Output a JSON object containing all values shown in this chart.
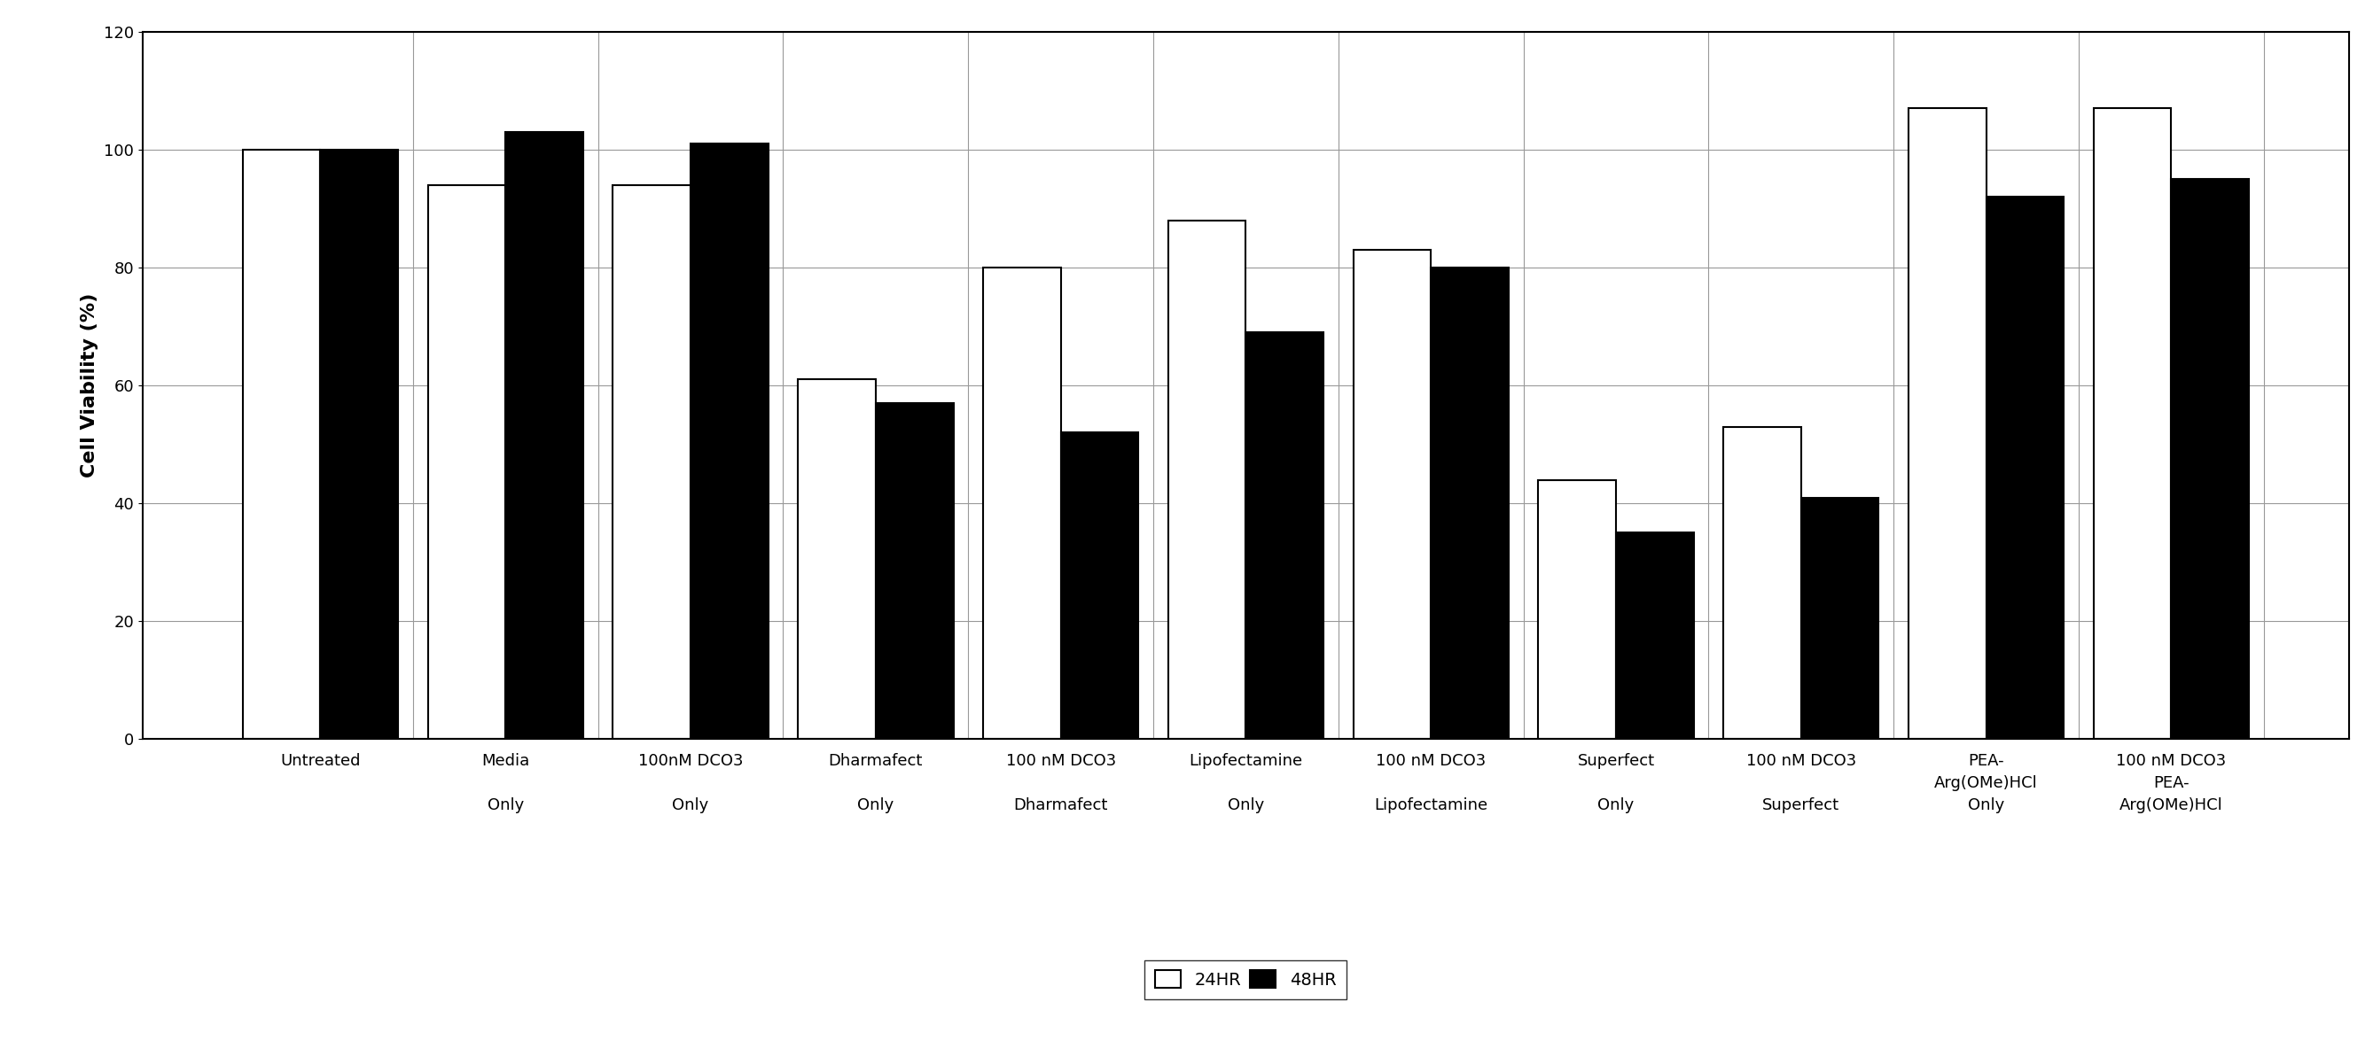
{
  "categories": [
    "Untreated",
    "Media\n\nOnly",
    "100nM DCO3\n\nOnly",
    "Dharmafect\n\nOnly",
    "100 nM DCO3\n\nDharmafect",
    "Lipofectamine\n\nOnly",
    "100 nM DCO3\n\nLipofectamine",
    "Superfect\n\nOnly",
    "100 nM DCO3\n\nSuperfect",
    "PEA-\nArg(OMe)HCl\nOnly",
    "100 nM DCO3\nPEA-\nArg(OMe)HCl"
  ],
  "values_24hr": [
    100,
    94,
    94,
    61,
    80,
    88,
    83,
    44,
    53,
    107,
    107
  ],
  "values_48hr": [
    100,
    103,
    101,
    57,
    52,
    69,
    80,
    35,
    41,
    92,
    95
  ],
  "bar_color_24hr": "#ffffff",
  "bar_color_48hr": "#000000",
  "bar_edgecolor": "#000000",
  "ylabel": "Cell Viability (%)",
  "ylim": [
    0,
    120
  ],
  "yticks": [
    0,
    20,
    40,
    60,
    80,
    100,
    120
  ],
  "legend_labels": [
    "24HR",
    "48HR"
  ],
  "background_color": "#ffffff",
  "bar_width": 0.42,
  "axis_fontsize": 16,
  "tick_fontsize": 13,
  "legend_fontsize": 14
}
